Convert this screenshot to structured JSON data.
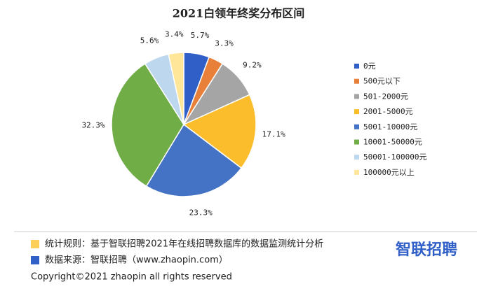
{
  "chart_data": {
    "type": "pie",
    "title": "2021白领年终奖分布区间",
    "categories": [
      "0元",
      "500元以下",
      "501-2000元",
      "2001-5000元",
      "5001-10000元",
      "10001-50000元",
      "50001-100000元",
      "100000元以上"
    ],
    "values": [
      5.7,
      3.3,
      9.2,
      17.1,
      23.3,
      32.3,
      5.6,
      3.4
    ],
    "value_labels": [
      "5.7%",
      "3.3%",
      "9.2%",
      "17.1%",
      "23.3%",
      "32.3%",
      "5.6%",
      "3.4%"
    ],
    "colors": [
      "#2f5fc7",
      "#e8803a",
      "#a5a5a5",
      "#fbbd2b",
      "#4472c4",
      "#70ad47",
      "#bdd7ee",
      "#ffe699"
    ],
    "legend": "right",
    "annotations": [
      {
        "text": "统计规则：基于智联招聘2021年在线招聘数据库的数据监测统计分析",
        "color": "#fbcf5a"
      },
      {
        "text": "数据来源：智联招聘（www.zhaopin.com）",
        "color": "#2f5fc7"
      }
    ],
    "copyright": "Copyright©2021 zhaopin all rights reserved",
    "logo": "智联招聘"
  }
}
